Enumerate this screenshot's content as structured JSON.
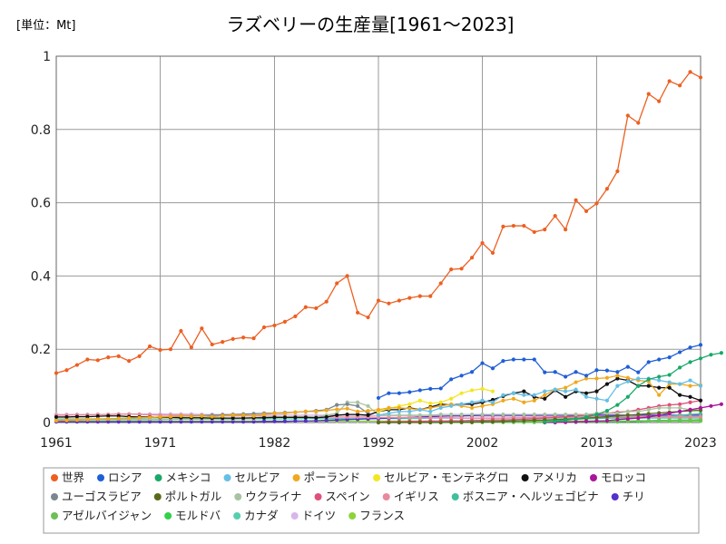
{
  "chart_data": {
    "type": "line",
    "title": "ラズベリーの生産量[1961～2023]",
    "unit_label": "[単位：Mt]",
    "xlabel": "",
    "ylabel": "",
    "xlim": [
      1961,
      2023
    ],
    "ylim": [
      0,
      1
    ],
    "x_ticks": [
      "1961",
      "1971",
      "1982",
      "1992",
      "2002",
      "2013",
      "2023"
    ],
    "y_ticks": [
      "0",
      "0.2",
      "0.4",
      "0.6",
      "0.8",
      "1"
    ],
    "grid": true,
    "legend_position": "bottom",
    "series": [
      {
        "name": "世界",
        "color": "#ed5f21",
        "x_start": 1961,
        "values": [
          0.135,
          0.143,
          0.157,
          0.172,
          0.17,
          0.178,
          0.181,
          0.168,
          0.181,
          0.208,
          0.198,
          0.2,
          0.25,
          0.205,
          0.257,
          0.213,
          0.22,
          0.228,
          0.232,
          0.23,
          0.26,
          0.265,
          0.275,
          0.29,
          0.315,
          0.312,
          0.33,
          0.38,
          0.4,
          0.3,
          0.287,
          0.333,
          0.325,
          0.333,
          0.34,
          0.345,
          0.345,
          0.38,
          0.418,
          0.42,
          0.45,
          0.49,
          0.463,
          0.535,
          0.537,
          0.537,
          0.52,
          0.527,
          0.564,
          0.527,
          0.607,
          0.577,
          0.598,
          0.638,
          0.686,
          0.838,
          0.818,
          0.897,
          0.877,
          0.932,
          0.92,
          0.957,
          0.942
        ]
      },
      {
        "name": "ロシア",
        "color": "#1f5fd6",
        "x_start": 1992,
        "values": [
          0.067,
          0.08,
          0.08,
          0.083,
          0.088,
          0.092,
          0.093,
          0.118,
          0.128,
          0.138,
          0.162,
          0.148,
          0.168,
          0.172,
          0.172,
          0.172,
          0.137,
          0.138,
          0.125,
          0.138,
          0.128,
          0.143,
          0.142,
          0.138,
          0.152,
          0.137,
          0.165,
          0.172,
          0.178,
          0.192,
          0.205,
          0.212
        ]
      },
      {
        "name": "メキシコ",
        "color": "#1aa86a",
        "x_start": 2008,
        "values": [
          0.001,
          0.003,
          0.006,
          0.01,
          0.015,
          0.022,
          0.032,
          0.048,
          0.07,
          0.1,
          0.118,
          0.125,
          0.13,
          0.15,
          0.165,
          0.175,
          0.185,
          0.19
        ]
      },
      {
        "name": "セルビア",
        "color": "#66bfe6",
        "x_start": 1992,
        "values": [
          0.02,
          0.025,
          0.03,
          0.03,
          0.035,
          0.03,
          0.04,
          0.045,
          0.05,
          0.055,
          0.06,
          0.055,
          0.075,
          0.08,
          0.075,
          0.075,
          0.085,
          0.09,
          0.085,
          0.09,
          0.07,
          0.065,
          0.06,
          0.1,
          0.112,
          0.12,
          0.12,
          0.115,
          0.11,
          0.105,
          0.115,
          0.1
        ]
      },
      {
        "name": "ポーランド",
        "color": "#f0a81e",
        "x_start": 1961,
        "values": [
          0.005,
          0.006,
          0.007,
          0.008,
          0.009,
          0.01,
          0.011,
          0.012,
          0.013,
          0.014,
          0.015,
          0.016,
          0.018,
          0.017,
          0.018,
          0.016,
          0.018,
          0.02,
          0.02,
          0.018,
          0.022,
          0.025,
          0.025,
          0.028,
          0.03,
          0.03,
          0.033,
          0.036,
          0.038,
          0.03,
          0.032,
          0.035,
          0.04,
          0.04,
          0.038,
          0.035,
          0.04,
          0.045,
          0.05,
          0.045,
          0.04,
          0.045,
          0.05,
          0.06,
          0.065,
          0.055,
          0.06,
          0.075,
          0.09,
          0.095,
          0.11,
          0.12,
          0.12,
          0.122,
          0.128,
          0.122,
          0.115,
          0.112,
          0.075,
          0.105,
          0.105,
          0.1,
          0.102
        ]
      },
      {
        "name": "セルビア・モンテネグロ",
        "color": "#f3e623",
        "x_start": 1992,
        "values": [
          0.03,
          0.038,
          0.045,
          0.05,
          0.06,
          0.052,
          0.055,
          0.065,
          0.08,
          0.088,
          0.092,
          0.085
        ]
      },
      {
        "name": "アメリカ",
        "color": "#111111",
        "x_start": 1961,
        "values": [
          0.015,
          0.015,
          0.016,
          0.016,
          0.017,
          0.018,
          0.018,
          0.016,
          0.015,
          0.015,
          0.014,
          0.014,
          0.013,
          0.013,
          0.013,
          0.012,
          0.012,
          0.012,
          0.012,
          0.013,
          0.013,
          0.014,
          0.014,
          0.014,
          0.014,
          0.013,
          0.015,
          0.02,
          0.022,
          0.022,
          0.02,
          0.03,
          0.035,
          0.035,
          0.04,
          0.035,
          0.042,
          0.05,
          0.048,
          0.05,
          0.05,
          0.055,
          0.062,
          0.072,
          0.08,
          0.085,
          0.07,
          0.065,
          0.088,
          0.07,
          0.085,
          0.08,
          0.085,
          0.105,
          0.12,
          0.115,
          0.1,
          0.1,
          0.095,
          0.095,
          0.075,
          0.07,
          0.06
        ]
      },
      {
        "name": "モロッコ",
        "color": "#a8169a",
        "x_start": 2008,
        "values": [
          0.0,
          0.0,
          0.001,
          0.002,
          0.003,
          0.004,
          0.005,
          0.008,
          0.01,
          0.012,
          0.015,
          0.02,
          0.025,
          0.03,
          0.035,
          0.04,
          0.045,
          0.05
        ]
      },
      {
        "name": "ユーゴスラビア",
        "color": "#7a8790",
        "x_start": 1961,
        "values": [
          0.005,
          0.006,
          0.007,
          0.008,
          0.009,
          0.01,
          0.011,
          0.012,
          0.013,
          0.014,
          0.015,
          0.016,
          0.017,
          0.018,
          0.019,
          0.02,
          0.021,
          0.022,
          0.023,
          0.024,
          0.025,
          0.026,
          0.027,
          0.028,
          0.03,
          0.032,
          0.035,
          0.048,
          0.05,
          0.045,
          0.025
        ]
      },
      {
        "name": "ポルトガル",
        "color": "#5a6a1a",
        "x_start": 1992,
        "values": [
          0.0,
          0.0,
          0.0,
          0.0,
          0.0,
          0.0,
          0.0,
          0.001,
          0.001,
          0.001,
          0.002,
          0.002,
          0.003,
          0.004,
          0.005,
          0.006,
          0.007,
          0.008,
          0.009,
          0.01,
          0.012,
          0.014,
          0.016,
          0.018,
          0.02,
          0.022,
          0.024,
          0.026,
          0.028,
          0.03,
          0.032,
          0.033
        ]
      },
      {
        "name": "ウクライナ",
        "color": "#a9c3a2",
        "x_start": 1961,
        "values": [
          0.01,
          0.01,
          0.01,
          0.01,
          0.01,
          0.01,
          0.01,
          0.01,
          0.01,
          0.01,
          0.01,
          0.01,
          0.01,
          0.01,
          0.01,
          0.01,
          0.01,
          0.01,
          0.01,
          0.01,
          0.015,
          0.015,
          0.015,
          0.015,
          0.015,
          0.015,
          0.02,
          0.025,
          0.055,
          0.055,
          0.045,
          0.02,
          0.02,
          0.02,
          0.02,
          0.02,
          0.02,
          0.022,
          0.022,
          0.022,
          0.022,
          0.022,
          0.022,
          0.022,
          0.022,
          0.022,
          0.022,
          0.022,
          0.022,
          0.022,
          0.022,
          0.022,
          0.025,
          0.025,
          0.025,
          0.03,
          0.03,
          0.035,
          0.04,
          0.04,
          0.04,
          0.035,
          0.035
        ]
      },
      {
        "name": "スペイン",
        "color": "#e04f7a",
        "x_start": 1992,
        "values": [
          0.001,
          0.002,
          0.002,
          0.003,
          0.003,
          0.004,
          0.004,
          0.005,
          0.005,
          0.006,
          0.006,
          0.007,
          0.007,
          0.008,
          0.009,
          0.01,
          0.012,
          0.014,
          0.016,
          0.018,
          0.02,
          0.022,
          0.025,
          0.028,
          0.03,
          0.035,
          0.04,
          0.045,
          0.048,
          0.05,
          0.055,
          0.06
        ]
      },
      {
        "name": "イギリス",
        "color": "#e9899a",
        "x_start": 1961,
        "values": [
          0.02,
          0.02,
          0.021,
          0.021,
          0.022,
          0.022,
          0.023,
          0.023,
          0.022,
          0.021,
          0.02,
          0.02,
          0.02,
          0.019,
          0.019,
          0.018,
          0.018,
          0.018,
          0.018,
          0.018,
          0.017,
          0.017,
          0.016,
          0.016,
          0.016,
          0.015,
          0.015,
          0.015,
          0.015,
          0.015,
          0.015,
          0.014,
          0.014,
          0.014,
          0.014,
          0.013,
          0.013,
          0.013,
          0.013,
          0.012,
          0.012,
          0.012,
          0.012,
          0.012,
          0.013,
          0.013,
          0.014,
          0.014,
          0.015,
          0.015,
          0.015,
          0.015,
          0.015,
          0.016,
          0.016,
          0.016,
          0.016,
          0.016,
          0.016,
          0.016,
          0.016,
          0.016,
          0.016
        ]
      },
      {
        "name": "ボスニア・ヘルツェゴビナ",
        "color": "#3fbf9c",
        "x_start": 1992,
        "values": [
          0.0,
          0.0,
          0.0,
          0.001,
          0.001,
          0.001,
          0.002,
          0.002,
          0.002,
          0.003,
          0.003,
          0.003,
          0.004,
          0.005,
          0.005,
          0.006,
          0.006,
          0.007,
          0.008,
          0.009,
          0.01,
          0.011,
          0.012,
          0.013,
          0.014,
          0.015,
          0.016,
          0.017,
          0.018,
          0.02,
          0.022,
          0.024
        ]
      },
      {
        "name": "チリ",
        "color": "#5530c9",
        "x_start": 1961,
        "values": [
          0.002,
          0.002,
          0.002,
          0.002,
          0.002,
          0.002,
          0.002,
          0.002,
          0.002,
          0.002,
          0.002,
          0.002,
          0.002,
          0.002,
          0.002,
          0.002,
          0.002,
          0.002,
          0.002,
          0.002,
          0.003,
          0.003,
          0.003,
          0.004,
          0.004,
          0.005,
          0.006,
          0.007,
          0.008,
          0.009,
          0.01,
          0.011,
          0.012,
          0.013,
          0.014,
          0.015,
          0.016,
          0.017,
          0.018,
          0.018,
          0.019,
          0.02,
          0.02,
          0.02,
          0.02,
          0.02,
          0.02,
          0.02,
          0.02,
          0.02,
          0.02,
          0.02,
          0.02,
          0.02,
          0.02,
          0.02,
          0.02,
          0.02,
          0.02,
          0.02,
          0.02,
          0.02,
          0.02
        ]
      },
      {
        "name": "アゼルバイジャン",
        "color": "#6fbf56",
        "x_start": 1992,
        "values": [
          0.0,
          0.0,
          0.0,
          0.0,
          0.0,
          0.0,
          0.0,
          0.0,
          0.0,
          0.0,
          0.001,
          0.001,
          0.001,
          0.001,
          0.001,
          0.001,
          0.002,
          0.002,
          0.002,
          0.002,
          0.003,
          0.003,
          0.003,
          0.004,
          0.004,
          0.005,
          0.005,
          0.006,
          0.006,
          0.007,
          0.007,
          0.008
        ]
      },
      {
        "name": "モルドバ",
        "color": "#33d148",
        "x_start": 1992,
        "values": [
          0.001,
          0.001,
          0.001,
          0.001,
          0.001,
          0.001,
          0.001,
          0.001,
          0.001,
          0.001,
          0.001,
          0.001,
          0.001,
          0.001,
          0.001,
          0.001,
          0.001,
          0.001,
          0.001,
          0.001,
          0.002,
          0.002,
          0.002,
          0.002,
          0.003,
          0.003,
          0.004,
          0.004,
          0.005,
          0.005,
          0.006,
          0.006
        ]
      },
      {
        "name": "カナダ",
        "color": "#55cfae",
        "x_start": 1961,
        "values": [
          0.008,
          0.008,
          0.008,
          0.008,
          0.008,
          0.008,
          0.008,
          0.008,
          0.008,
          0.008,
          0.008,
          0.009,
          0.009,
          0.009,
          0.009,
          0.009,
          0.009,
          0.009,
          0.01,
          0.01,
          0.01,
          0.01,
          0.01,
          0.01,
          0.011,
          0.011,
          0.011,
          0.011,
          0.011,
          0.011,
          0.011,
          0.011,
          0.011,
          0.011,
          0.011,
          0.011,
          0.012,
          0.012,
          0.012,
          0.012,
          0.012,
          0.012,
          0.012,
          0.012,
          0.012,
          0.012,
          0.012,
          0.012,
          0.012,
          0.012,
          0.012,
          0.012,
          0.012,
          0.012,
          0.012,
          0.012,
          0.012,
          0.012,
          0.012,
          0.012,
          0.012,
          0.012,
          0.012
        ]
      },
      {
        "name": "ドイツ",
        "color": "#d7b6ea",
        "x_start": 1961,
        "values": [
          0.022,
          0.022,
          0.022,
          0.022,
          0.022,
          0.022,
          0.023,
          0.023,
          0.023,
          0.023,
          0.023,
          0.023,
          0.023,
          0.023,
          0.022,
          0.022,
          0.022,
          0.022,
          0.021,
          0.021,
          0.021,
          0.021,
          0.021,
          0.02,
          0.02,
          0.02,
          0.02,
          0.02,
          0.02,
          0.02,
          0.019,
          0.019,
          0.019,
          0.019,
          0.019,
          0.018,
          0.018,
          0.018,
          0.018,
          0.018,
          0.018,
          0.017,
          0.017,
          0.017,
          0.017,
          0.017,
          0.017,
          0.016,
          0.016,
          0.016,
          0.016,
          0.016,
          0.016,
          0.016,
          0.016,
          0.015,
          0.015,
          0.015,
          0.015,
          0.015,
          0.015,
          0.015,
          0.015
        ]
      },
      {
        "name": "フランス",
        "color": "#8cd43a",
        "x_start": 1961,
        "values": [
          0.004,
          0.004,
          0.004,
          0.004,
          0.004,
          0.004,
          0.004,
          0.004,
          0.004,
          0.004,
          0.004,
          0.004,
          0.004,
          0.004,
          0.004,
          0.004,
          0.004,
          0.004,
          0.004,
          0.004,
          0.004,
          0.004,
          0.004,
          0.004,
          0.004,
          0.004,
          0.004,
          0.004,
          0.004,
          0.004,
          0.004,
          0.004,
          0.004,
          0.004,
          0.004,
          0.004,
          0.004,
          0.004,
          0.004,
          0.004,
          0.004,
          0.004,
          0.004,
          0.004,
          0.004,
          0.004,
          0.004,
          0.004,
          0.004,
          0.004,
          0.004,
          0.004,
          0.004,
          0.004,
          0.004,
          0.004,
          0.004,
          0.004,
          0.004,
          0.004,
          0.004,
          0.004,
          0.004
        ]
      }
    ]
  }
}
